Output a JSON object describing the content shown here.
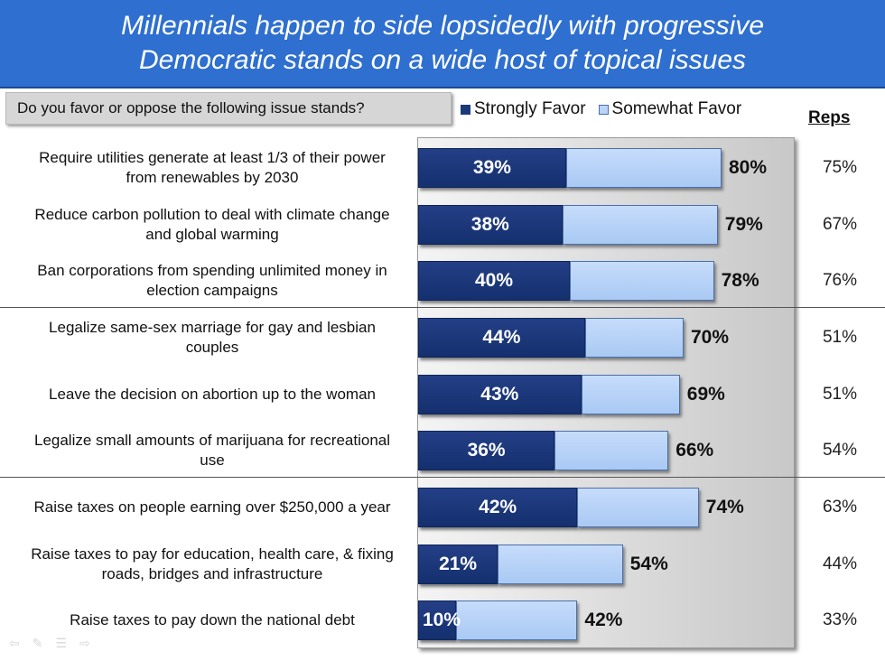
{
  "title": {
    "line1": "Millennials happen to side lopsidedly with progressive",
    "line2": "Democratic stands on a wide host of topical issues"
  },
  "question": "Do you favor or oppose the following issue stands?",
  "legend": {
    "strong": "Strongly Favor",
    "somewhat": "Somewhat Favor"
  },
  "reps_header": "Reps",
  "colors": {
    "strongly_favor": "#1b3a7a",
    "somewhat_favor": "#b8d4f6",
    "title_background": "#2e6fd0"
  },
  "chart_data": {
    "type": "bar",
    "orientation": "horizontal",
    "stacked": true,
    "xlim": [
      0,
      100
    ],
    "categories": [
      "Require utilities generate at least 1/3 of their power from renewables by 2030",
      "Reduce carbon pollution to deal with climate change and global warming",
      "Ban corporations from spending unlimited money in election campaigns",
      "Legalize same-sex marriage for gay and lesbian couples",
      "Leave the decision on abortion up to the woman",
      "Legalize small amounts of marijuana for recreational use",
      "Raise taxes on people earning over $250,000 a year",
      "Raise taxes to pay for education, health care, & fixing roads, bridges and infrastructure",
      "Raise taxes to pay down the national debt"
    ],
    "series": [
      {
        "name": "Strongly Favor",
        "values": [
          39,
          38,
          40,
          44,
          43,
          36,
          42,
          21,
          10
        ]
      },
      {
        "name": "Somewhat Favor",
        "values": [
          41,
          41,
          38,
          26,
          26,
          30,
          32,
          33,
          32
        ]
      }
    ],
    "strong_labels": [
      "39%",
      "38%",
      "40%",
      "44%",
      "43%",
      "36%",
      "42%",
      "21%",
      "10%"
    ],
    "total_labels": [
      "80%",
      "79%",
      "78%",
      "70%",
      "69%",
      "66%",
      "74%",
      "54%",
      "42%"
    ],
    "reps_labels": [
      "75%",
      "67%",
      "76%",
      "51%",
      "51%",
      "54%",
      "63%",
      "44%",
      "33%"
    ]
  }
}
